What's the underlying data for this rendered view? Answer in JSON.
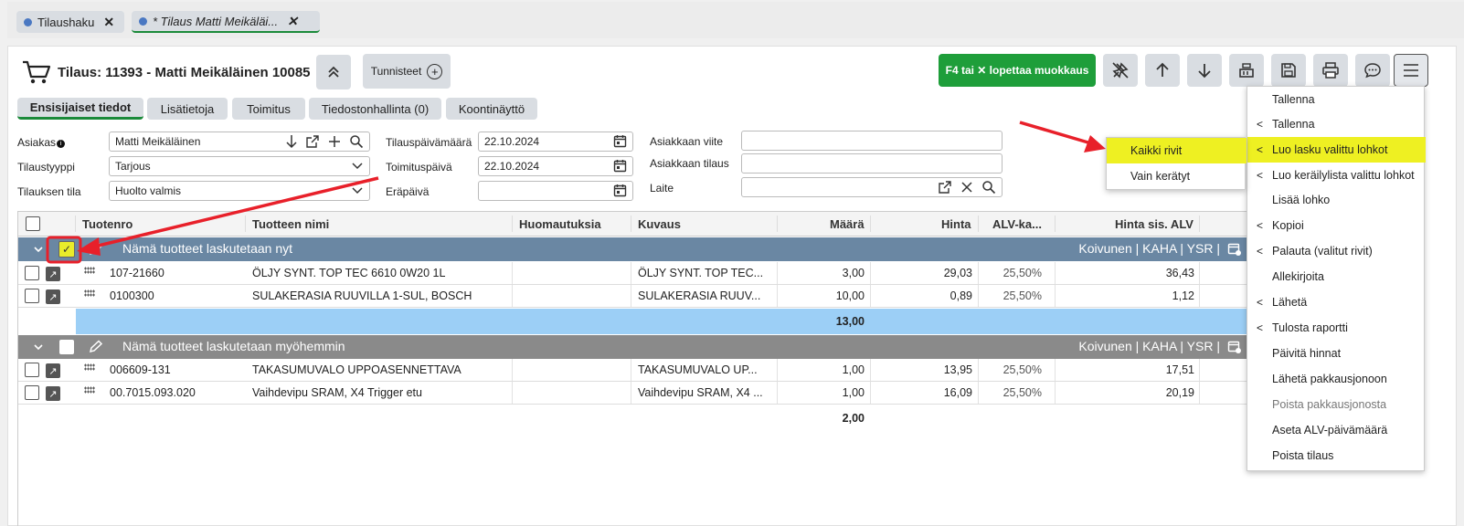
{
  "doc_tabs": [
    {
      "label": "Tilaushaku"
    },
    {
      "label": "* Tilaus Matti Meikäläi..."
    }
  ],
  "header": {
    "title": "Tilaus: 11393 - Matti Meikäläinen 10085",
    "tags_label": "Tunnisteet",
    "edit_button": "F4 tai ✕ lopettaa muokkaus"
  },
  "subtabs": [
    {
      "label": "Ensisijaiset tiedot"
    },
    {
      "label": "Lisätietoja"
    },
    {
      "label": "Toimitus"
    },
    {
      "label": "Tiedostonhallinta (0)"
    },
    {
      "label": "Koontinäyttö"
    }
  ],
  "form": {
    "asiakas_label": "Asiakas",
    "asiakas_value": "Matti Meikäläinen",
    "tilaustyyppi_label": "Tilaustyyppi",
    "tilaustyyppi_value": "Tarjous",
    "tilauksen_tila_label": "Tilauksen tila",
    "tilauksen_tila_value": "Huolto valmis",
    "tilauspaiva_label": "Tilauspäivämäärä",
    "tilauspaiva_value": "22.10.2024",
    "toimituspaiva_label": "Toimituspäivä",
    "toimituspaiva_value": "22.10.2024",
    "erapaiva_label": "Eräpäivä",
    "erapaiva_value": "",
    "asiakkaan_viite_label": "Asiakkaan viite",
    "asiakkaan_tilaus_label": "Asiakkaan tilaus",
    "laite_label": "Laite"
  },
  "grid": {
    "columns": {
      "tuotenro": "Tuotenro",
      "nimi": "Tuotteen nimi",
      "huom": "Huomautuksia",
      "kuvaus": "Kuvaus",
      "maara": "Määrä",
      "hinta": "Hinta",
      "alv": "ALV-ka...",
      "hinta_alv": "Hinta sis. ALV"
    },
    "groups": [
      {
        "title": "Nämä tuotteet laskutetaan nyt",
        "right": "Koivunen | KAHA | YSR |",
        "rows": [
          {
            "tuotenro": "107-21660",
            "nimi": "ÖLJY SYNT. TOP TEC 6610 0W20 1L",
            "kuvaus": "ÖLJY SYNT. TOP TEC...",
            "maara": "3,00",
            "hinta": "29,03",
            "alv": "25,50%",
            "hinta_alv": "36,43"
          },
          {
            "tuotenro": "0100300",
            "nimi": "SULAKERASIA RUUVILLA 1-SUL, BOSCH",
            "kuvaus": "SULAKERASIA RUUV...",
            "maara": "10,00",
            "hinta": "0,89",
            "alv": "25,50%",
            "hinta_alv": "1,12"
          }
        ],
        "sum": "13,00"
      },
      {
        "title": "Nämä tuotteet laskutetaan myöhemmin",
        "right": "Koivunen | KAHA | YSR |",
        "rows": [
          {
            "tuotenro": "006609-131",
            "nimi": "TAKASUMUVALO UPPOASENNETTAVA",
            "kuvaus": "TAKASUMUVALO UP...",
            "maara": "1,00",
            "hinta": "13,95",
            "alv": "25,50%",
            "hinta_alv": "17,51"
          },
          {
            "tuotenro": "00.7015.093.020",
            "nimi": "Vaihdevipu SRAM, X4 Trigger etu",
            "kuvaus": "Vaihdevipu SRAM, X4 ...",
            "maara": "1,00",
            "hinta": "16,09",
            "alv": "25,50%",
            "hinta_alv": "20,19"
          }
        ],
        "sum": "2,00"
      }
    ]
  },
  "menu": [
    {
      "label": "Tallenna",
      "chevron": false
    },
    {
      "label": "Tallenna",
      "chevron": true
    },
    {
      "label": "Luo lasku valittu lohkot",
      "chevron": true,
      "highlight": true
    },
    {
      "label": "Luo keräilylista valittu lohkot",
      "chevron": true
    },
    {
      "label": "Lisää lohko",
      "chevron": false
    },
    {
      "label": "Kopioi",
      "chevron": true
    },
    {
      "label": "Palauta (valitut rivit)",
      "chevron": true
    },
    {
      "label": "Allekirjoita",
      "chevron": false
    },
    {
      "label": "Lähetä",
      "chevron": true
    },
    {
      "label": "Tulosta raportti",
      "chevron": true
    },
    {
      "label": "Päivitä hinnat",
      "chevron": false
    },
    {
      "label": "Lähetä pakkausjonoon",
      "chevron": false
    },
    {
      "label": "Poista pakkausjonosta",
      "chevron": false,
      "disabled": true
    },
    {
      "label": "Aseta ALV-päivämäärä",
      "chevron": false
    },
    {
      "label": "Poista tilaus",
      "chevron": false
    }
  ],
  "submenu": [
    {
      "label": "Kaikki rivit",
      "highlight": true
    },
    {
      "label": "Vain kerätyt"
    }
  ],
  "colors": {
    "accent_green": "#1e9e3a",
    "group_now": "#6a87a3",
    "group_later": "#8a8a8a",
    "highlight": "#eef022",
    "annotation_red": "#e8202a",
    "sum_row": "#a6d2f5"
  }
}
